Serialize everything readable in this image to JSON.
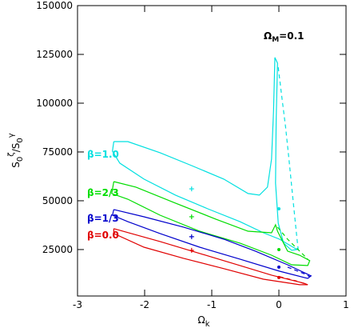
{
  "chart_data": {
    "type": "contour",
    "annotation": [
      "Ω",
      "M",
      "=0.1"
    ],
    "xlabel": [
      "Ω",
      "k"
    ],
    "ylabel": [
      "S",
      "0",
      "ζ",
      "/S",
      "0",
      "γ"
    ],
    "xlim": [
      -3,
      1
    ],
    "xticks": [
      -3,
      -2,
      -1,
      0,
      1
    ],
    "ylim": [
      1200,
      150000
    ],
    "yticks": [
      25000,
      50000,
      75000,
      100000,
      125000,
      150000
    ],
    "series": [
      {
        "name": "β=1.0",
        "color": "#00e0e0",
        "x": [
          -2.46,
          -2.25,
          -1.77,
          -1.3,
          -0.82,
          -0.46,
          -0.29,
          -0.17,
          -0.11,
          -0.08,
          -0.06,
          -0.02,
          -0.04,
          -0.05,
          -0.01,
          0.07,
          0.19,
          0.27,
          0.01,
          -0.23,
          -0.58,
          -1.06,
          -1.54,
          -2.01,
          -2.37,
          -2.48,
          -2.46
        ],
        "values": [
          80300,
          80300,
          74600,
          68000,
          61100,
          53700,
          52900,
          57000,
          71300,
          95900,
          123400,
          120500,
          91800,
          59000,
          38500,
          28300,
          24600,
          25000,
          30300,
          33600,
          39300,
          45900,
          52900,
          61100,
          69300,
          75400,
          80300
        ],
        "dash_x": [
          -0.01,
          0.04,
          0.1,
          0.15,
          0.21,
          0.27,
          0.29
        ],
        "dash_values": [
          118400,
          104100,
          87700,
          71300,
          50800,
          30300,
          24200
        ],
        "cross": [
          -1.3,
          56100
        ],
        "dot": [
          0,
          45900
        ]
      },
      {
        "name": "β=2/3",
        "color": "#00dd00",
        "x": [
          -2.46,
          -2.13,
          -1.54,
          -0.94,
          -0.46,
          -0.11,
          -0.05,
          -0.02,
          0.13,
          0.31,
          0.46,
          0.43,
          0.19,
          -0.11,
          -0.58,
          -1.18,
          -1.77,
          -2.25,
          -2.49,
          -2.46
        ],
        "values": [
          59800,
          57000,
          48800,
          40600,
          34400,
          33600,
          37700,
          34400,
          24200,
          22100,
          19300,
          16800,
          17200,
          22100,
          28300,
          34400,
          42600,
          50800,
          53700,
          59800
        ],
        "dash_x": [
          -0.02,
          0.13,
          0.31,
          0.43
        ],
        "dash_values": [
          36500,
          30300,
          24200,
          20100
        ],
        "cross": [
          -1.3,
          41800
        ],
        "dot": [
          0,
          25000
        ]
      },
      {
        "name": "β=1/3",
        "color": "#0000cc",
        "x": [
          -2.46,
          -2.01,
          -1.42,
          -0.82,
          -0.35,
          0.13,
          0.48,
          0.43,
          0.01,
          -0.58,
          -1.18,
          -1.77,
          -2.25,
          -2.48,
          -2.46
        ],
        "values": [
          45500,
          41800,
          36500,
          30300,
          24200,
          17200,
          11500,
          10200,
          13900,
          20100,
          26200,
          33200,
          39300,
          42600,
          45500
        ],
        "dash_x": [
          0.13,
          0.37,
          0.46
        ],
        "dash_values": [
          16000,
          12700,
          11100
        ],
        "cross": [
          -1.3,
          31600
        ],
        "dot": [
          0,
          16000
        ]
      },
      {
        "name": "β=0.0",
        "color": "#e00000",
        "x": [
          -2.46,
          -1.77,
          -1.18,
          -0.58,
          -0.11,
          0.37,
          0.43,
          0.31,
          -0.23,
          -0.82,
          -1.42,
          -2.01,
          -2.46,
          -2.46
        ],
        "values": [
          35700,
          29100,
          23000,
          16800,
          11900,
          7800,
          7000,
          7000,
          9800,
          15200,
          20500,
          26200,
          33200,
          35700
        ],
        "dash_x": [
          0.01,
          0.25,
          0.43
        ],
        "dash_values": [
          11100,
          9000,
          7000
        ],
        "cross": [
          -1.3,
          24600
        ],
        "dot": [
          0,
          10700
        ]
      }
    ]
  }
}
